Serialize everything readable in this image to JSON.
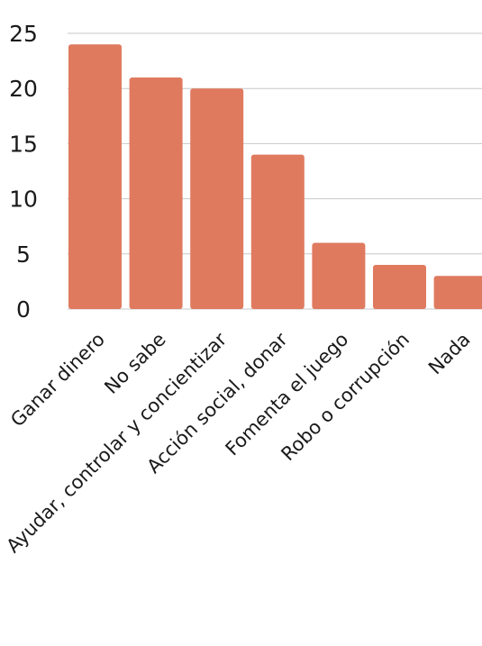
{
  "chart_data": {
    "type": "bar",
    "categories": [
      "Ganar dinero",
      "No sabe",
      "Ayudar, controlar y concientizar",
      "Acción social, donar",
      "Fomenta el juego",
      "Robo o corrupción",
      "Nada"
    ],
    "values": [
      24,
      21,
      20,
      14,
      6,
      4,
      3
    ],
    "ylim": [
      0,
      25
    ],
    "yticks": [
      "0",
      "5",
      "10",
      "15",
      "20",
      "25"
    ],
    "bar_color": "#e07a5f",
    "grid": true,
    "title": "",
    "xlabel": "",
    "ylabel": ""
  }
}
